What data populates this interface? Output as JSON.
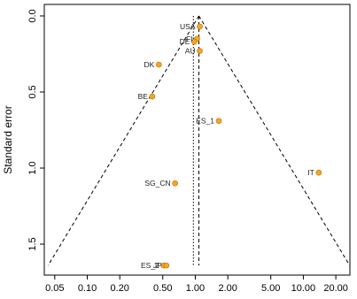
{
  "chart_data": {
    "type": "scatter",
    "subtype": "funnel-plot",
    "title": "",
    "xlabel": "",
    "ylabel": "Standard error",
    "x_scale": "log",
    "y_reversed": true,
    "xlim": [
      0.04,
      27
    ],
    "ylim": [
      0,
      1.68
    ],
    "x_ticks": [
      0.05,
      0.1,
      0.2,
      0.5,
      1.0,
      2.0,
      5.0,
      10.0,
      20.0
    ],
    "x_tick_labels": [
      "0.05",
      "0.10",
      "0.20",
      "0.50",
      "1.00",
      "2.00",
      "5.00",
      "10.00",
      "20.00"
    ],
    "y_ticks": [
      0.0,
      0.5,
      1.0,
      1.5
    ],
    "y_tick_labels": [
      "0.0",
      "0.5",
      "1.0",
      "1.5"
    ],
    "pooled_estimate": 1.08,
    "reference_line": 0.96,
    "funnel_z": 1.96,
    "points_color": "#f5a623",
    "points_stroke": "#c07a10",
    "series": [
      {
        "points": [
          {
            "label": "USA",
            "x": 1.1,
            "y": 0.07
          },
          {
            "label": "FI",
            "x": 1.04,
            "y": 0.15
          },
          {
            "label": "DE",
            "x": 0.98,
            "y": 0.17
          },
          {
            "label": "AU",
            "x": 1.1,
            "y": 0.23
          },
          {
            "label": "DK",
            "x": 0.46,
            "y": 0.32
          },
          {
            "label": "BE",
            "x": 0.4,
            "y": 0.53
          },
          {
            "label": "ES_1",
            "x": 1.65,
            "y": 0.69
          },
          {
            "label": "IT",
            "x": 13.9,
            "y": 1.03
          },
          {
            "label": "SG_CN",
            "x": 0.65,
            "y": 1.1
          },
          {
            "label": "ES_2",
            "x": 0.51,
            "y": 1.64
          },
          {
            "label": "JP",
            "x": 0.54,
            "y": 1.64
          }
        ]
      }
    ]
  }
}
